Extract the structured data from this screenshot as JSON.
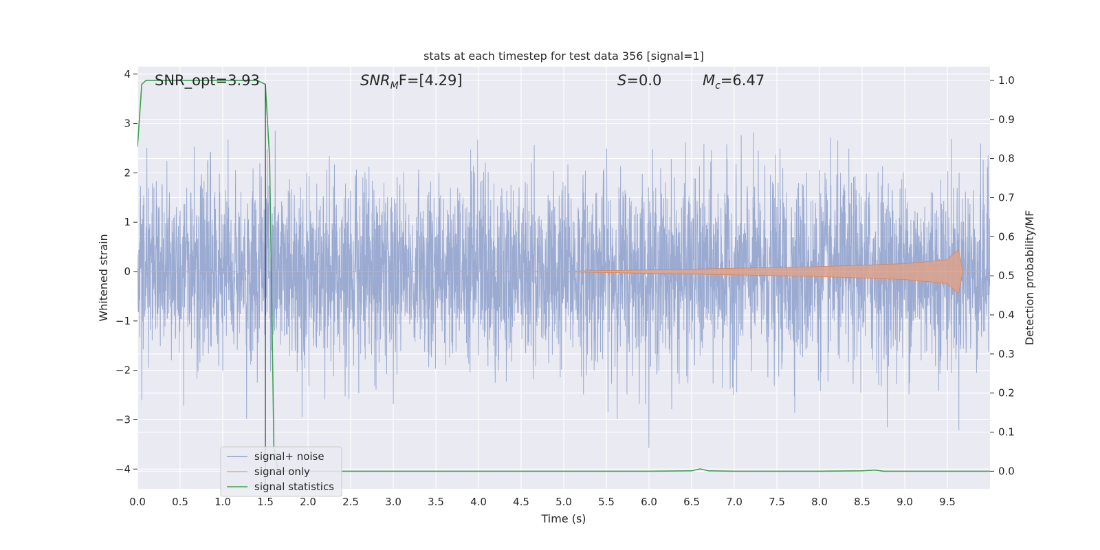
{
  "chart_data": {
    "type": "line",
    "title": "stats at each timestep for test data 356 [signal=1]",
    "xlabel": "Time (s)",
    "ylabel_left": "Whitened strain",
    "ylabel_right": "Detection probability/MF",
    "xlim": [
      0.0,
      10.0
    ],
    "ylim_left": [
      -4.4,
      4.15
    ],
    "ylim_right": [
      -0.045,
      1.035
    ],
    "grid": true,
    "legend_position": "lower-left",
    "x_ticks": [
      "0.0",
      "0.5",
      "1.0",
      "1.5",
      "2.0",
      "2.5",
      "3.0",
      "3.5",
      "4.0",
      "4.5",
      "5.0",
      "5.5",
      "6.0",
      "6.5",
      "7.0",
      "7.5",
      "8.0",
      "8.5",
      "9.0",
      "9.5"
    ],
    "y_ticks_left": [
      "4",
      "3",
      "2",
      "1",
      "0",
      "−1",
      "−2",
      "−3",
      "−4"
    ],
    "y_ticks_right": [
      "1.0",
      "0.9",
      "0.8",
      "0.7",
      "0.6",
      "0.5",
      "0.4",
      "0.3",
      "0.2",
      "0.1",
      "0.0"
    ],
    "annotations": {
      "snr_opt": "SNR_opt=3.93",
      "snr_mf_main": "SNR",
      "snr_mf_sub": "M",
      "snr_mf_rest": "F=[4.29]",
      "s_label": "S",
      "s_value": "=0.0",
      "mc_main": "M",
      "mc_sub": "c",
      "mc_value": "=6.47"
    },
    "vertical_marker_x": 1.5,
    "series": [
      {
        "name": "signal+ noise",
        "color": "#8c9fcb",
        "axis": "left",
        "description_range": [
          -4.0,
          3.8
        ]
      },
      {
        "name": "signal only",
        "color": "#dd8452",
        "axis": "left",
        "envelope": {
          "x": [
            0.0,
            5.0,
            6.5,
            8.0,
            9.0,
            9.5,
            9.63,
            9.68,
            10.0
          ],
          "amp": [
            0.0,
            0.005,
            0.05,
            0.1,
            0.16,
            0.24,
            0.45,
            0.0,
            0.0
          ]
        }
      },
      {
        "name": "signal statistics",
        "color": "#3ea04f",
        "axis": "right",
        "x": [
          0.0,
          0.05,
          0.1,
          0.2,
          0.5,
          1.0,
          1.4,
          1.5,
          1.55,
          1.6,
          1.65,
          1.7,
          2.0,
          3.0,
          4.0,
          5.0,
          6.0,
          6.5,
          6.6,
          6.7,
          7.0,
          8.0,
          8.5,
          8.65,
          8.75,
          9.0,
          10.0
        ],
        "y": [
          0.83,
          0.99,
          1.0,
          1.0,
          1.0,
          1.0,
          1.0,
          0.99,
          0.8,
          0.06,
          0.0,
          0.0,
          0.0,
          0.0,
          0.0,
          0.0,
          0.0,
          0.001,
          0.006,
          0.001,
          0.0,
          0.0,
          0.001,
          0.003,
          0.0,
          0.0,
          0.0
        ]
      }
    ]
  }
}
